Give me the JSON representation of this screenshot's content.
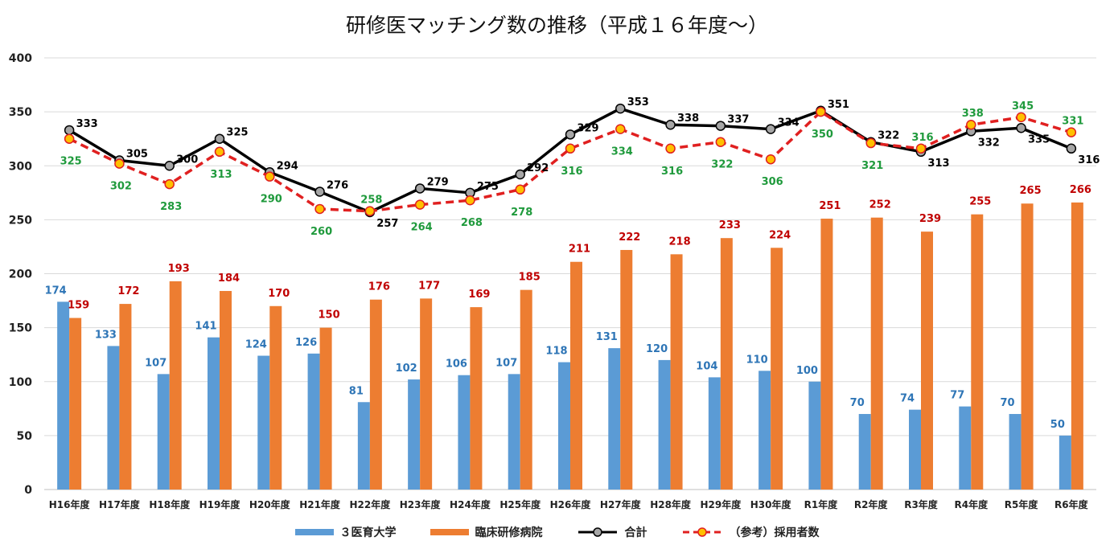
{
  "chart_data": {
    "type": "bar+line",
    "title": "研修医マッチング数の推移（平成１６年度〜）",
    "categories": [
      "H16年度",
      "H17年度",
      "H18年度",
      "H19年度",
      "H20年度",
      "H21年度",
      "H22年度",
      "H23年度",
      "H24年度",
      "H25年度",
      "H26年度",
      "H27年度",
      "H28年度",
      "H29年度",
      "H30年度",
      "R1年度",
      "R2年度",
      "R3年度",
      "R4年度",
      "R5年度",
      "R6年度"
    ],
    "ylim": [
      0,
      400
    ],
    "yticks": [
      0,
      50,
      100,
      150,
      200,
      250,
      300,
      350,
      400
    ],
    "grid": true,
    "legend_position": "bottom",
    "series": [
      {
        "name": "３医育大学",
        "kind": "bar",
        "color": "#5b9bd5",
        "label_color": "#2e75b6",
        "values": [
          174,
          133,
          107,
          141,
          124,
          126,
          81,
          102,
          106,
          107,
          118,
          131,
          120,
          104,
          110,
          100,
          70,
          74,
          77,
          70,
          50
        ]
      },
      {
        "name": "臨床研修病院",
        "kind": "bar",
        "color": "#ed7d31",
        "label_color": "#c00000",
        "values": [
          159,
          172,
          193,
          184,
          170,
          150,
          176,
          177,
          169,
          185,
          211,
          222,
          218,
          233,
          224,
          251,
          252,
          239,
          255,
          265,
          266
        ]
      },
      {
        "name": "合計",
        "kind": "line",
        "color": "#000000",
        "marker_color": "#a6a6a6",
        "label_color": "#000000",
        "values": [
          333,
          305,
          300,
          325,
          294,
          276,
          257,
          279,
          275,
          292,
          329,
          353,
          338,
          337,
          334,
          351,
          322,
          313,
          332,
          335,
          316
        ]
      },
      {
        "name": "（参考）採用者数",
        "kind": "line",
        "dashed": true,
        "color": "#e02020",
        "marker_color": "#ffc000",
        "label_color": "#1f9a3c",
        "values": [
          325,
          302,
          283,
          313,
          290,
          260,
          258,
          264,
          268,
          278,
          316,
          334,
          316,
          322,
          306,
          350,
          321,
          316,
          338,
          345,
          331
        ]
      }
    ]
  }
}
